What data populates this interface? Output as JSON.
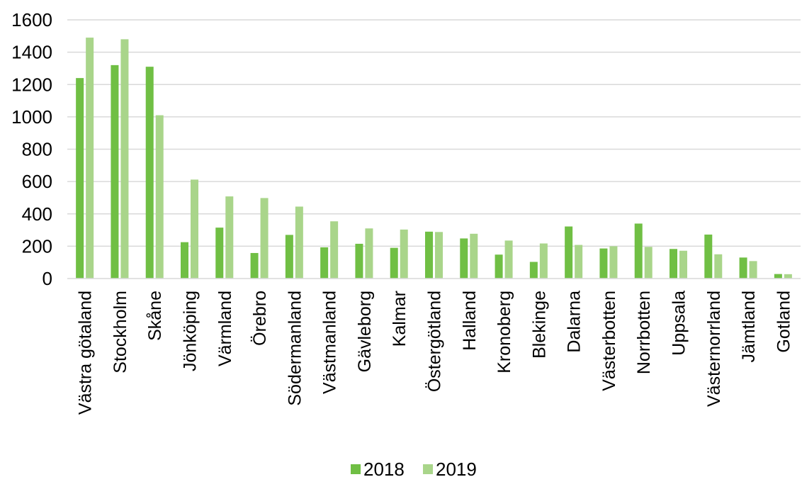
{
  "chart_data": {
    "type": "bar",
    "title": "",
    "xlabel": "",
    "ylabel": "",
    "ylim": [
      0,
      1600
    ],
    "yticks": [
      0,
      200,
      400,
      600,
      800,
      1000,
      1200,
      1400,
      1600
    ],
    "grid": true,
    "legend_position": "bottom",
    "categories": [
      "Västra götaland",
      "Stockholm",
      "Skåne",
      "Jönköping",
      "Värmland",
      "Örebro",
      "Södermanland",
      "Västmanland",
      "Gävleborg",
      "Kalmar",
      "Östergötland",
      "Halland",
      "Kronoberg",
      "Blekinge",
      "Dalarna",
      "Västerbotten",
      "Norrbotten",
      "Uppsala",
      "Västernorrland",
      "Jämtland",
      "Gotland"
    ],
    "series": [
      {
        "name": "2018",
        "color": "#70bf44",
        "values": [
          1240,
          1320,
          1310,
          225,
          315,
          158,
          270,
          193,
          215,
          190,
          290,
          248,
          148,
          103,
          322,
          186,
          340,
          183,
          272,
          130,
          28
        ]
      },
      {
        "name": "2019",
        "color": "#a9d58a",
        "values": [
          1490,
          1480,
          1010,
          612,
          508,
          498,
          445,
          354,
          310,
          303,
          288,
          277,
          235,
          217,
          208,
          200,
          196,
          172,
          150,
          108,
          27
        ]
      }
    ]
  }
}
